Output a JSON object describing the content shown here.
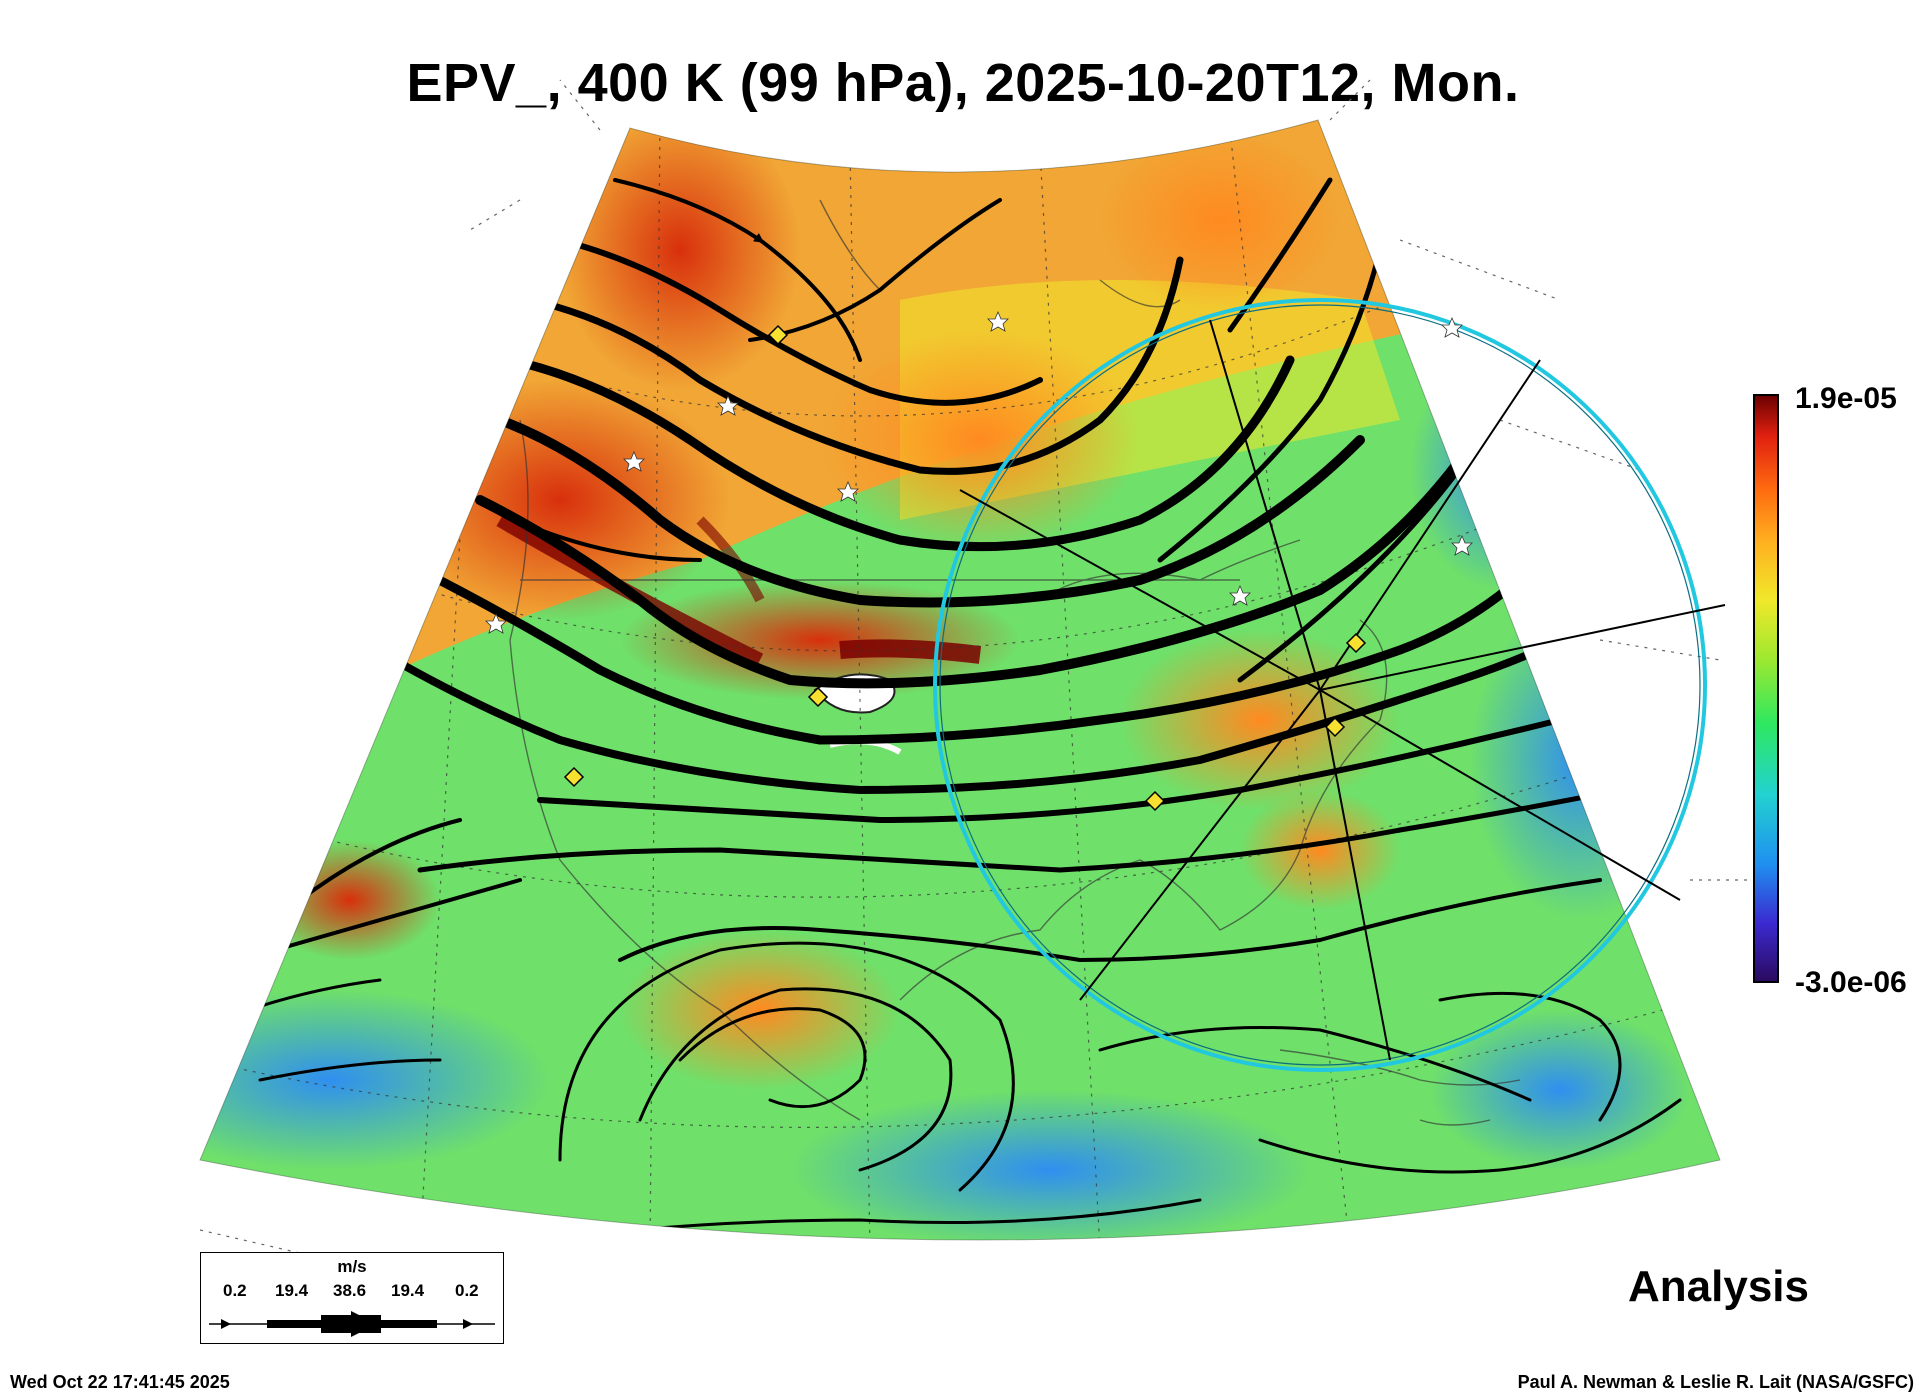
{
  "title": "EPV_, 400 K (99 hPa), 2025-10-20T12, Mon.",
  "colorbar": {
    "max_label": "1.9e-05",
    "min_label": "-3.0e-06",
    "stops": [
      "#2a0a5e",
      "#3b2ad0",
      "#1f8ff0",
      "#22d2d0",
      "#2ee860",
      "#9ee830",
      "#f0e82a",
      "#ffb020",
      "#ff6a10",
      "#e02010",
      "#6a0000"
    ]
  },
  "legend": {
    "unit": "m/s",
    "labels": [
      "0.2",
      "19.4",
      "38.6",
      "19.4",
      "0.2"
    ]
  },
  "product_label": "Analysis",
  "timestamp": "Wed Oct 22 17:41:45 2025",
  "credit": "Paul A. Newman & Leslie R. Lait (NASA/GSFC)",
  "map": {
    "field": "EPV_",
    "projection": "polar-stereographic sector (North America)",
    "colors": {
      "background_field": "#6fe06a",
      "warm_field": "#ffa030",
      "hot_field": "#e84a14",
      "cool_field": "#3aa0f0",
      "streamline": "#000000",
      "circle": "#22c8e0",
      "marker_diamond": "#f8e030",
      "marker_star": "#ffffff"
    }
  }
}
